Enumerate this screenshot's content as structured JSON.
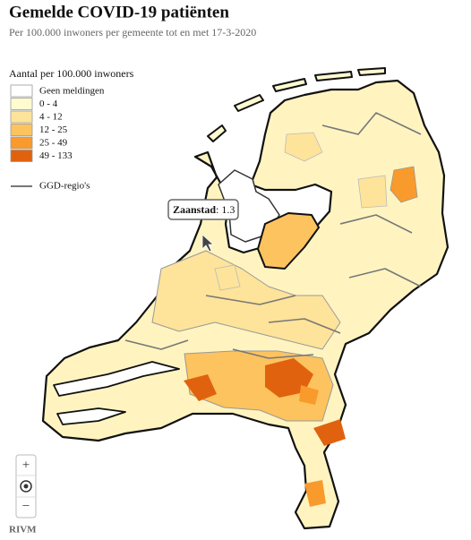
{
  "header": {
    "title": "Gemelde COVID-19 patiënten",
    "subtitle": "Per 100.000 inwoners per gemeente tot en met 17-3-2020"
  },
  "legend": {
    "title": "Aantal per 100.000 inwoners",
    "items": [
      {
        "label": "Geen meldingen",
        "color": "#ffffff"
      },
      {
        "label": "0 - 4",
        "color": "#fffbd0"
      },
      {
        "label": "4 - 12",
        "color": "#fee39a"
      },
      {
        "label": "12 - 25",
        "color": "#fdc35f"
      },
      {
        "label": "25 - 49",
        "color": "#f99a2c"
      },
      {
        "label": "49 - 133",
        "color": "#e0620f"
      }
    ],
    "regions_label": "GGD-regio's"
  },
  "tooltip": {
    "name": "Zaanstad",
    "separator": ":",
    "value": 1.3
  },
  "controls": {
    "zoom_in": "+",
    "zoom_out": "−"
  },
  "credit": "RIVM"
}
